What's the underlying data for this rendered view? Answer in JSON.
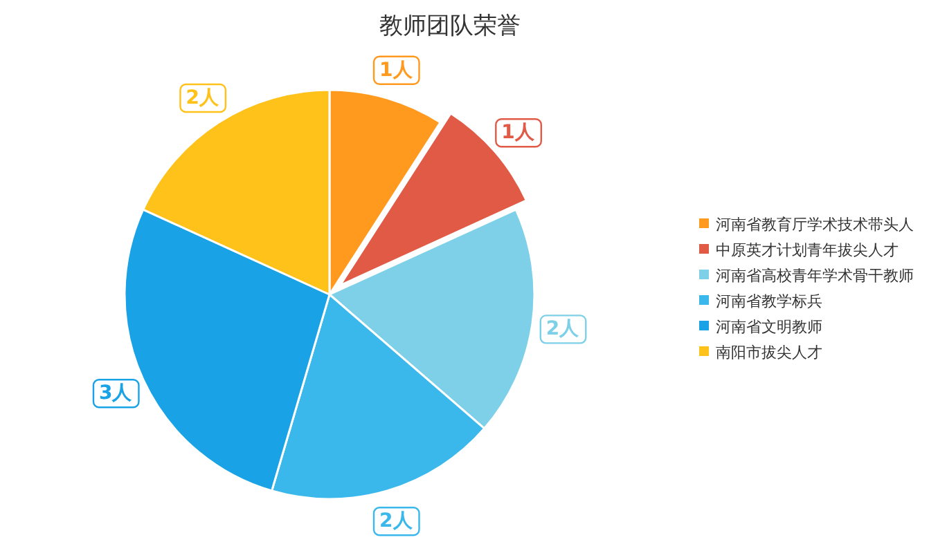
{
  "chart_data": {
    "type": "pie",
    "title": "教师团队荣誉",
    "categories": [
      "河南省教育厅学术技术带头人",
      "中原英才计划青年拔尖人才",
      "河南省高校青年学术骨干教师",
      "河南省教学标兵",
      "河南省文明教师",
      "南阳市拔尖人才"
    ],
    "values": [
      1,
      1,
      2,
      2,
      3,
      2
    ],
    "value_labels": [
      "1人",
      "1人",
      "2人",
      "2人",
      "3人",
      "2人"
    ],
    "colors": [
      "#ff9a1f",
      "#e05a45",
      "#7dd0e8",
      "#3ab8ec",
      "#19a3e6",
      "#ffc21a"
    ],
    "legend": "right"
  }
}
